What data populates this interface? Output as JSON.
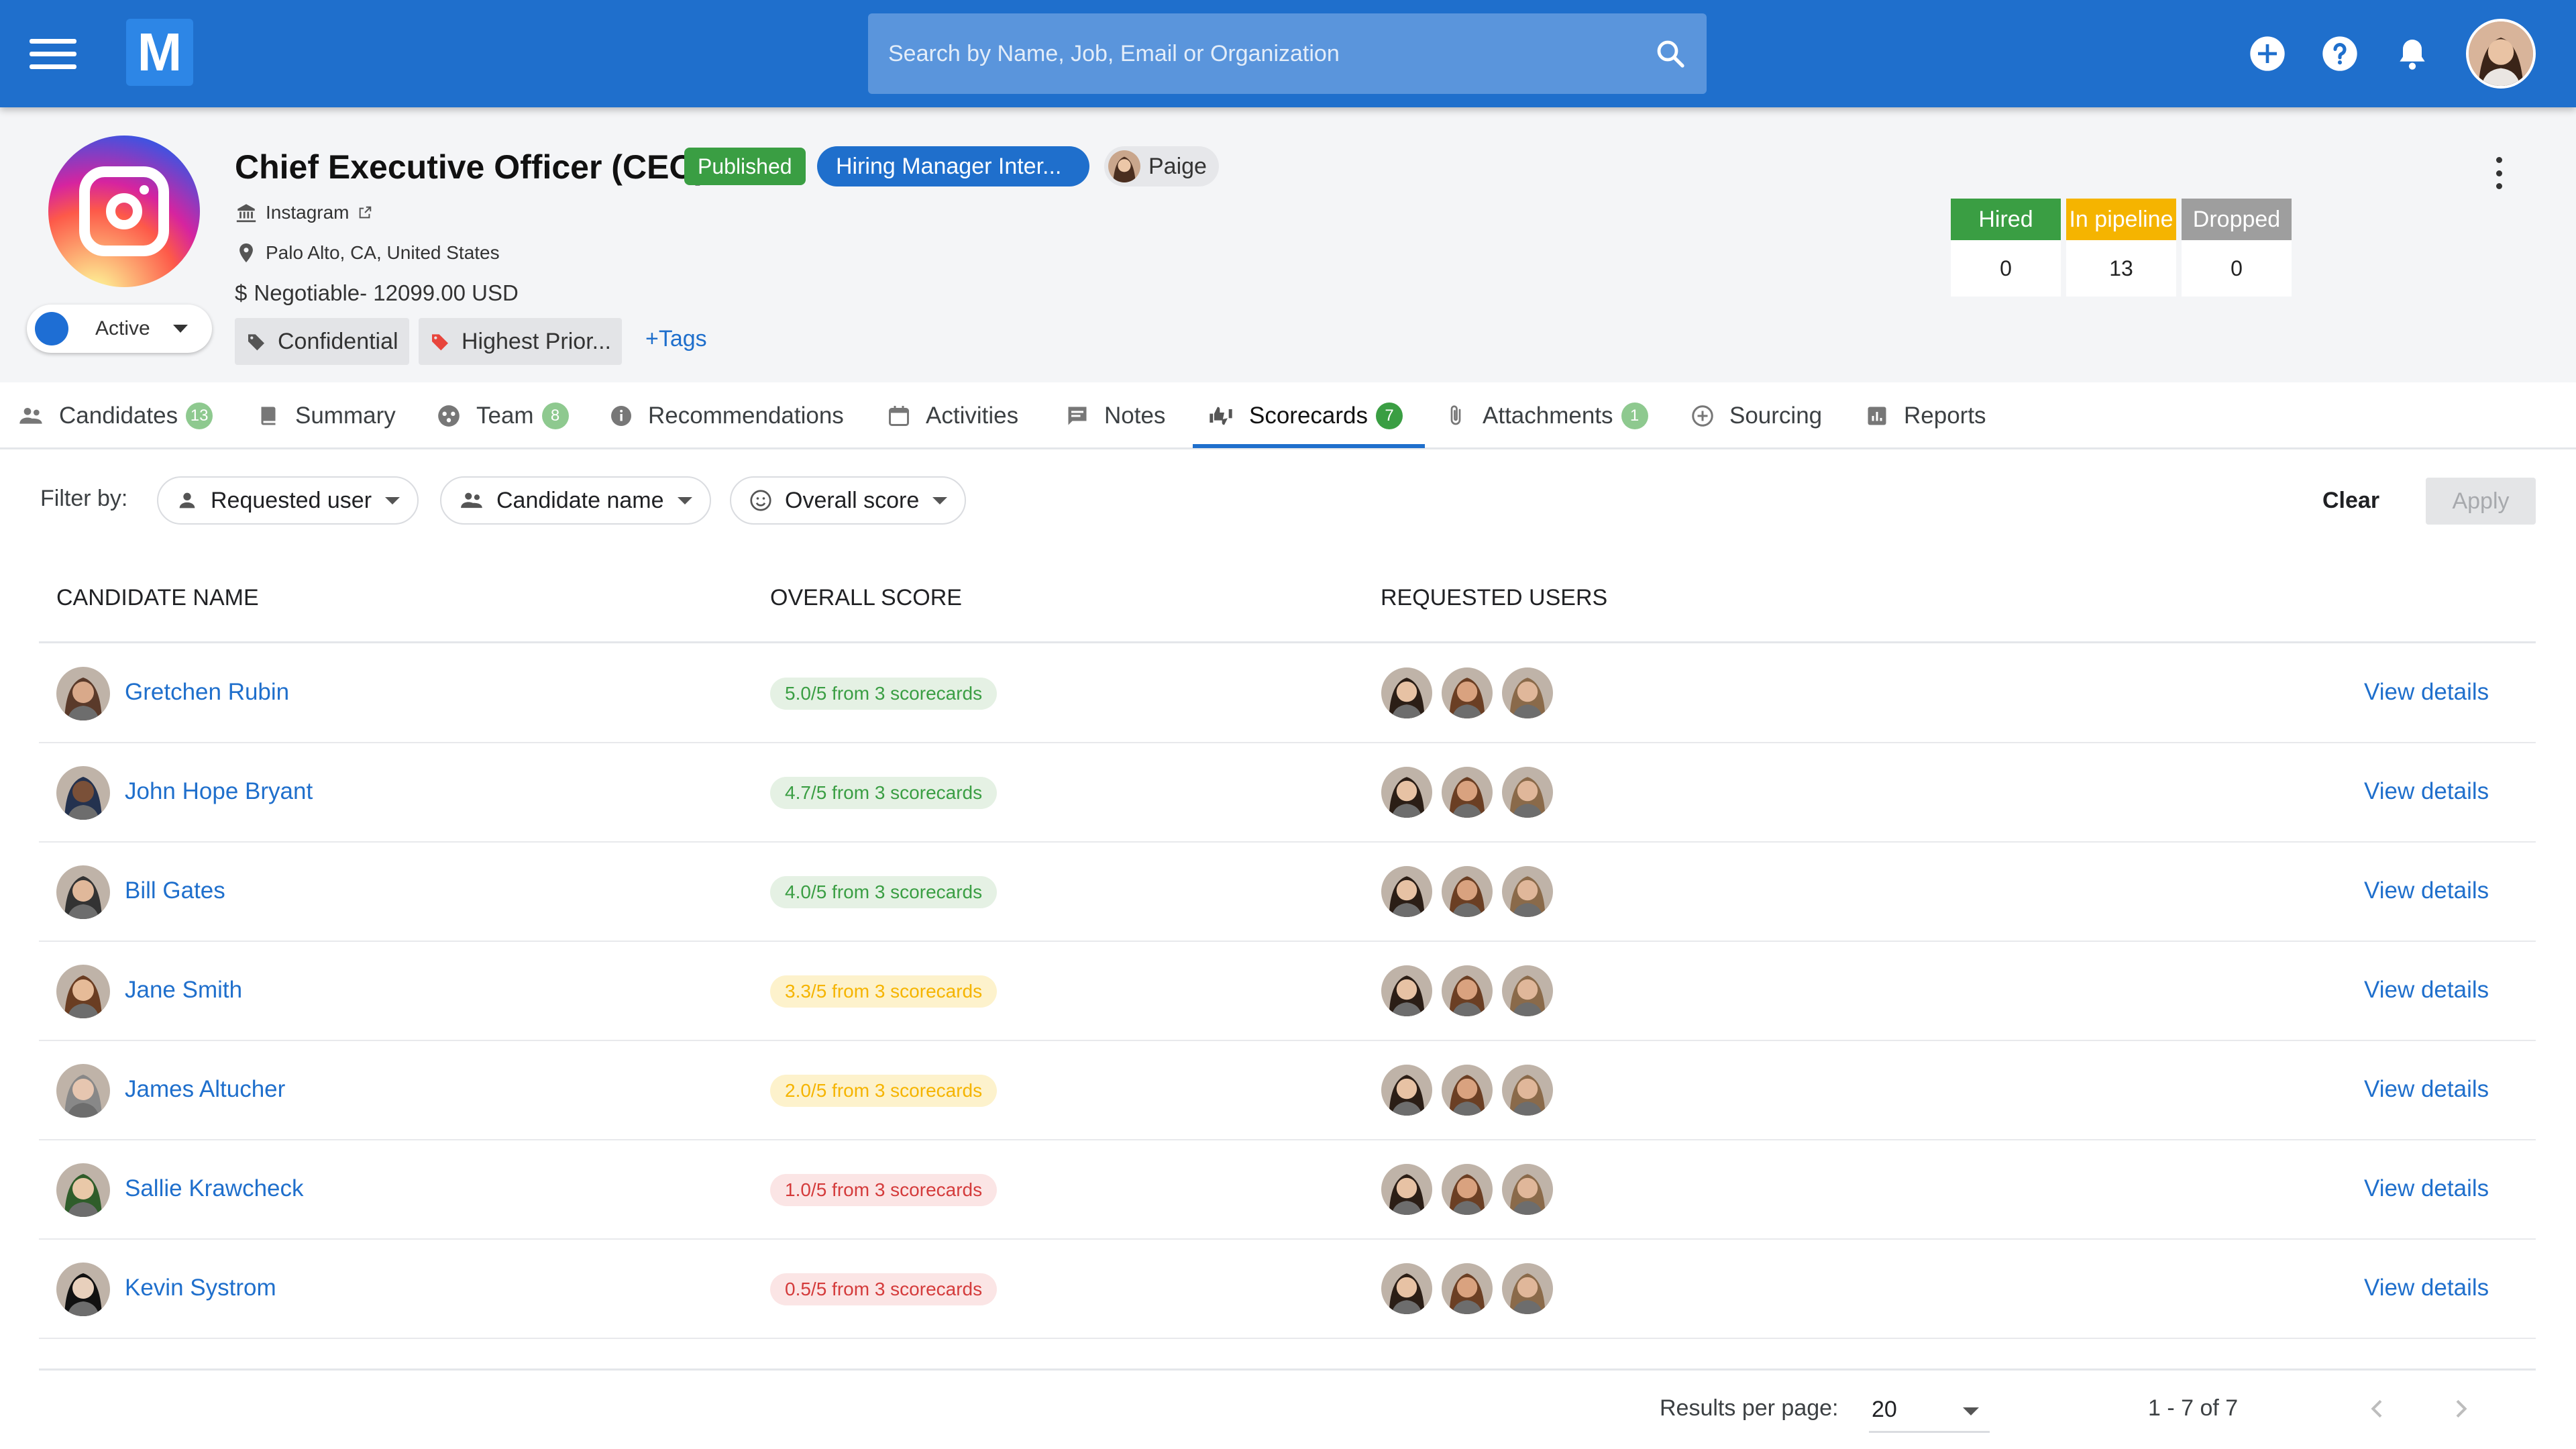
{
  "topbar": {
    "logo_letter": "M",
    "search_placeholder": "Search by Name, Job, Email or Organization",
    "icons": [
      "menu-icon",
      "search-icon",
      "add-circle-icon",
      "help-icon",
      "notification-bell-icon",
      "user-avatar"
    ]
  },
  "job": {
    "title": "Chief Executive Officer (CEO)",
    "status_badge": "Published",
    "stage": "Hiring Manager Inter...",
    "owner": "Paige",
    "company": "Instagram",
    "location": "Palo Alto, CA, United States",
    "salary": "Negotiable- 12099.00 USD",
    "tags": [
      "Confidential",
      "Highest Prior..."
    ],
    "add_tags_label": "+Tags",
    "state": "Active"
  },
  "stats": [
    {
      "label": "Hired",
      "value": "0",
      "color": "#3a9e43"
    },
    {
      "label": "In pipeline",
      "value": "13",
      "color": "#f5b400"
    },
    {
      "label": "Dropped",
      "value": "0",
      "color": "#9e9e9e"
    }
  ],
  "tabs": [
    {
      "label": "Candidates",
      "count": "13"
    },
    {
      "label": "Summary"
    },
    {
      "label": "Team",
      "count": "8"
    },
    {
      "label": "Recommendations"
    },
    {
      "label": "Activities"
    },
    {
      "label": "Notes"
    },
    {
      "label": "Scorecards",
      "count": "7",
      "active": true
    },
    {
      "label": "Attachments",
      "count": "1"
    },
    {
      "label": "Sourcing"
    },
    {
      "label": "Reports"
    }
  ],
  "filters": {
    "label": "Filter by:",
    "requested_user": "Requested user",
    "candidate_name": "Candidate name",
    "overall_score": "Overall score",
    "clear": "Clear",
    "apply": "Apply"
  },
  "table": {
    "headers": [
      "CANDIDATE NAME",
      "OVERALL SCORE",
      "REQUESTED USERS"
    ],
    "view_label": "View details",
    "rows": [
      {
        "name": "Gretchen Rubin",
        "score": "5.0/5 from 3 scorecards",
        "level": "green"
      },
      {
        "name": "John Hope Bryant",
        "score": "4.7/5 from 3 scorecards",
        "level": "green"
      },
      {
        "name": "Bill Gates",
        "score": "4.0/5 from 3 scorecards",
        "level": "green"
      },
      {
        "name": "Jane Smith",
        "score": "3.3/5 from 3 scorecards",
        "level": "yellow"
      },
      {
        "name": "James Altucher",
        "score": "2.0/5 from 3 scorecards",
        "level": "yellow"
      },
      {
        "name": "Sallie Krawcheck",
        "score": "1.0/5 from 3 scorecards",
        "level": "red"
      },
      {
        "name": "Kevin Systrom",
        "score": "0.5/5 from 3 scorecards",
        "level": "red"
      }
    ]
  },
  "footer": {
    "rpp_label": "Results per page:",
    "rpp_value": "20",
    "range": "1 - 7 of 7"
  },
  "colors": {
    "primary": "#1f6fcc",
    "success": "#3a9e43",
    "warning": "#f5b400",
    "danger": "#d43b3b"
  }
}
